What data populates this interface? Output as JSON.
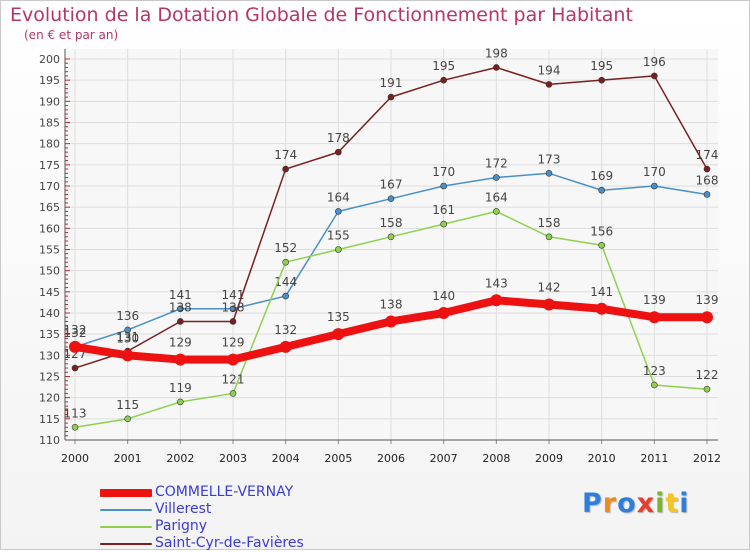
{
  "chart_data": {
    "type": "line",
    "title": "Evolution de la Dotation Globale de Fonctionnement par Habitant",
    "subtitle": "(en € et par an)",
    "x": [
      "2000",
      "2001",
      "2002",
      "2003",
      "2004",
      "2005",
      "2006",
      "2007",
      "2008",
      "2009",
      "2010",
      "2011",
      "2012"
    ],
    "ylim": [
      110,
      200
    ],
    "y_ticks": [
      110,
      115,
      120,
      125,
      130,
      135,
      140,
      145,
      150,
      155,
      160,
      165,
      170,
      175,
      180,
      185,
      190,
      195,
      200
    ],
    "grid": true,
    "legend_position": "bottom-left",
    "series": [
      {
        "name": "COMMELLE-VERNAY",
        "color": "#ee1111",
        "values": [
          132,
          130,
          129,
          129,
          132,
          135,
          138,
          140,
          143,
          142,
          141,
          139,
          139
        ]
      },
      {
        "name": "Villerest",
        "color": "#4a90c8",
        "values": [
          132,
          136,
          141,
          141,
          144,
          164,
          167,
          170,
          172,
          173,
          169,
          170,
          168
        ]
      },
      {
        "name": "Parigny",
        "color": "#8fd14f",
        "values": [
          113,
          115,
          119,
          121,
          152,
          155,
          158,
          161,
          164,
          158,
          156,
          123,
          122
        ]
      },
      {
        "name": "Saint-Cyr-de-Favières",
        "color": "#7a1f1f",
        "values": [
          127,
          131,
          138,
          138,
          174,
          178,
          191,
          195,
          198,
          194,
          195,
          196,
          174
        ]
      }
    ]
  },
  "logo": {
    "letters": [
      "P",
      "r",
      "o",
      "x",
      "i",
      "t",
      "i"
    ]
  }
}
